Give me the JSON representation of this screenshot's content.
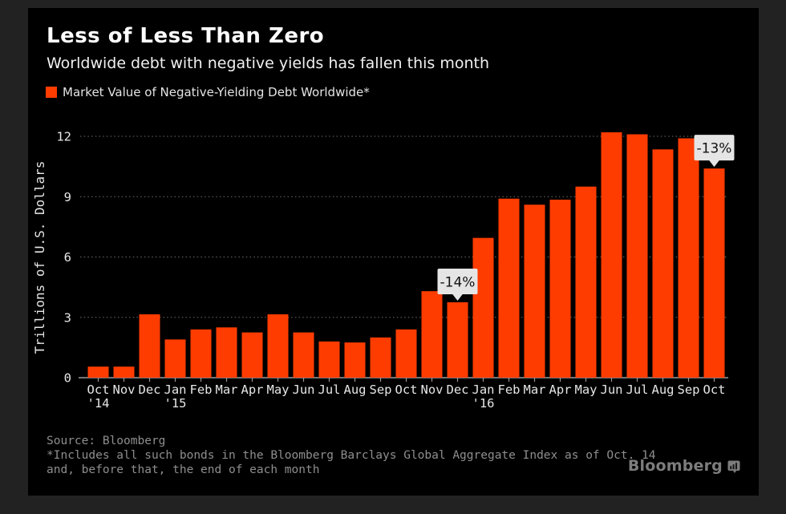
{
  "page": {
    "background_color": "#222222",
    "card_color": "#000000"
  },
  "header": {
    "title": "Less of Less Than Zero",
    "subtitle": "Worldwide debt with negative yields has fallen this month",
    "legend": {
      "swatch_icon": "legend-swatch",
      "swatch_color": "#ff3c00",
      "label": "Market Value of Negative-Yielding Debt Worldwide*"
    }
  },
  "chart_data": {
    "type": "bar",
    "title": "Less of Less Than Zero",
    "subtitle": "Worldwide debt with negative yields has fallen this month",
    "series_name": "Market Value of Negative-Yielding Debt Worldwide*",
    "xlabel": "",
    "ylabel": "Trillions of U.S. Dollars",
    "ylim": [
      0,
      12
    ],
    "yticks": [
      0,
      3,
      6,
      9,
      12
    ],
    "grid": "horizontal-dotted",
    "legend_position": "top-left",
    "bar_color": "#ff3c00",
    "categories": [
      "Oct '14",
      "Nov",
      "Dec",
      "Jan '15",
      "Feb",
      "Mar",
      "Apr",
      "May",
      "Jun",
      "Jul",
      "Aug",
      "Sep",
      "Oct",
      "Nov",
      "Dec",
      "Jan '16",
      "Feb",
      "Mar",
      "Apr",
      "May",
      "Jun",
      "Jul",
      "Aug",
      "Sep",
      "Oct"
    ],
    "values": [
      0.55,
      0.55,
      3.15,
      1.9,
      2.4,
      2.5,
      2.25,
      3.15,
      2.25,
      1.8,
      1.75,
      2.0,
      2.4,
      4.3,
      3.75,
      6.95,
      8.9,
      8.6,
      8.85,
      9.5,
      12.2,
      12.1,
      11.35,
      11.9,
      10.4
    ],
    "annotations": [
      {
        "index": 14,
        "category": "Dec '15",
        "label": "-14%"
      },
      {
        "index": 24,
        "category": "Oct '16",
        "label": "-13%"
      }
    ]
  },
  "footer": {
    "source": "Source: Bloomberg",
    "note_line1": "*Includes all such bonds in the Bloomberg Barclays Global Aggregate Index as of Oct. 14",
    "note_line2": "and, before that, the end of each month",
    "brand": "Bloomberg",
    "brand_icon": "bloomberg-chart-bubble-icon"
  }
}
